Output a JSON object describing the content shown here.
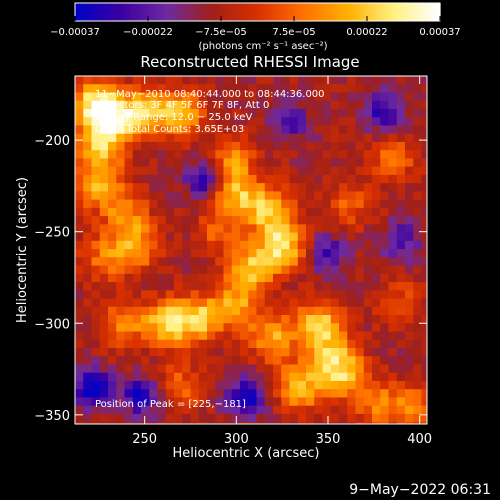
{
  "chart_data": {
    "type": "heatmap",
    "title": "Reconstructed RHESSI Image",
    "xlabel": "Heliocentric X (arcsec)",
    "ylabel": "Heliocentric Y (arcsec)",
    "xlim": [
      212,
      404
    ],
    "ylim": [
      -355,
      -165
    ],
    "x_ticks": [
      250,
      300,
      350,
      400
    ],
    "x_tick_labels": [
      "250",
      "300",
      "350",
      "400"
    ],
    "y_ticks": [
      -200,
      -250,
      -300,
      -350
    ],
    "y_tick_labels": [
      "−200",
      "−250",
      "−300",
      "−350"
    ],
    "colorbar": {
      "range": [
        -0.00037,
        0.00037
      ],
      "tick_labels": [
        "−0.00037",
        "−0.00022",
        "−7.5e−05",
        "7.5e−05",
        "0.00022",
        "0.00037"
      ],
      "unit_label": "(photons cm⁻² s⁻¹ asec⁻²)",
      "colormap": [
        "#0000c8",
        "#3c00a0",
        "#6e2aa0",
        "#a02018",
        "#d83000",
        "#ff7000",
        "#ffb000",
        "#fff080",
        "#ffffff"
      ]
    },
    "annotations": {
      "time": "11−May−2010 08:40:44.000 to 08:44:36.000",
      "detectors": "Detectors: 3F 4F 5F 6F 7F 8F, Att 0",
      "energy": "Energy Range: 12.0 − 25.0 keV",
      "clean": "Clean    Total Counts: 3.65E+03",
      "peak": "Position of Peak = [225,−181]"
    },
    "hotspots": [
      {
        "x": 224,
        "y": -180,
        "v": 0.00037
      },
      {
        "x": 232,
        "y": -190,
        "v": 0.00032
      },
      {
        "x": 250,
        "y": -185,
        "v": 0.0003
      },
      {
        "x": 270,
        "y": -185,
        "v": 0.00028
      },
      {
        "x": 225,
        "y": -205,
        "v": 0.00026
      },
      {
        "x": 225,
        "y": -225,
        "v": 0.00025
      },
      {
        "x": 240,
        "y": -240,
        "v": 0.0002
      },
      {
        "x": 245,
        "y": -258,
        "v": 0.00024
      },
      {
        "x": 228,
        "y": -265,
        "v": 0.00018
      },
      {
        "x": 300,
        "y": -230,
        "v": 0.00026
      },
      {
        "x": 318,
        "y": -238,
        "v": 0.0003
      },
      {
        "x": 325,
        "y": -258,
        "v": 0.00034
      },
      {
        "x": 308,
        "y": -270,
        "v": 0.00028
      },
      {
        "x": 298,
        "y": -210,
        "v": 0.00022
      },
      {
        "x": 280,
        "y": -298,
        "v": 0.0003
      },
      {
        "x": 262,
        "y": -300,
        "v": 0.00032
      },
      {
        "x": 238,
        "y": -300,
        "v": 0.0002
      },
      {
        "x": 300,
        "y": -290,
        "v": 0.00024
      },
      {
        "x": 320,
        "y": -308,
        "v": 0.00026
      },
      {
        "x": 345,
        "y": -300,
        "v": 0.0003
      },
      {
        "x": 352,
        "y": -318,
        "v": 0.00026
      },
      {
        "x": 335,
        "y": -335,
        "v": 0.00028
      },
      {
        "x": 360,
        "y": -330,
        "v": 0.00024
      },
      {
        "x": 378,
        "y": -345,
        "v": 0.0002
      },
      {
        "x": 398,
        "y": -345,
        "v": 0.00018
      },
      {
        "x": 385,
        "y": -210,
        "v": 0.00018
      },
      {
        "x": 362,
        "y": -235,
        "v": 0.00015
      },
      {
        "x": 390,
        "y": -290,
        "v": 0.00014
      },
      {
        "x": 270,
        "y": -335,
        "v": 0.00016
      },
      {
        "x": 290,
        "y": -250,
        "v": 0.00014
      }
    ],
    "minima": [
      {
        "x": 222,
        "y": -335,
        "v": -0.0003
      },
      {
        "x": 248,
        "y": -340,
        "v": -0.00026
      },
      {
        "x": 305,
        "y": -340,
        "v": -0.00028
      },
      {
        "x": 380,
        "y": -185,
        "v": -0.00024
      },
      {
        "x": 282,
        "y": -222,
        "v": -0.00022
      },
      {
        "x": 350,
        "y": -262,
        "v": -0.0002
      },
      {
        "x": 390,
        "y": -255,
        "v": -0.00018
      },
      {
        "x": 330,
        "y": -190,
        "v": -0.00016
      }
    ]
  },
  "footer": {
    "date": "9−May−2022 06:31"
  }
}
